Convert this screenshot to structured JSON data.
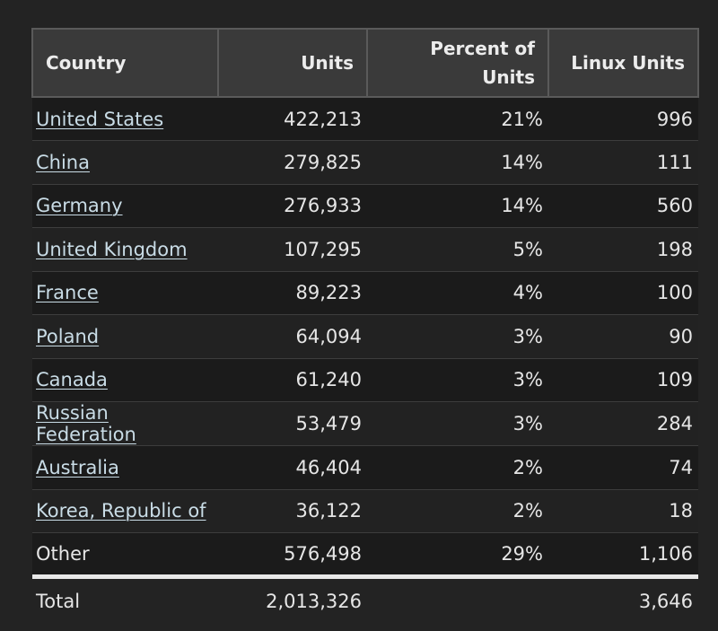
{
  "table": {
    "headers": {
      "country": "Country",
      "units": "Units",
      "percent_line1": "Percent of",
      "percent_line2": "Units",
      "linux": "Linux Units"
    },
    "rows": [
      {
        "country": "United States",
        "units": "422,213",
        "percent": "21%",
        "linux": "996",
        "link": true
      },
      {
        "country": "China",
        "units": "279,825",
        "percent": "14%",
        "linux": "111",
        "link": true
      },
      {
        "country": "Germany",
        "units": "276,933",
        "percent": "14%",
        "linux": "560",
        "link": true
      },
      {
        "country": "United Kingdom",
        "units": "107,295",
        "percent": "5%",
        "linux": "198",
        "link": true
      },
      {
        "country": "France",
        "units": "89,223",
        "percent": "4%",
        "linux": "100",
        "link": true
      },
      {
        "country": "Poland",
        "units": "64,094",
        "percent": "3%",
        "linux": "90",
        "link": true
      },
      {
        "country": "Canada",
        "units": "61,240",
        "percent": "3%",
        "linux": "109",
        "link": true
      },
      {
        "country": "Russian Federation",
        "units": "53,479",
        "percent": "3%",
        "linux": "284",
        "link": true
      },
      {
        "country": "Australia",
        "units": "46,404",
        "percent": "2%",
        "linux": "74",
        "link": true
      },
      {
        "country": "Korea, Republic of",
        "units": "36,122",
        "percent": "2%",
        "linux": "18",
        "link": true
      },
      {
        "country": "Other",
        "units": "576,498",
        "percent": "29%",
        "linux": "1,106",
        "link": false
      }
    ],
    "total": {
      "label": "Total",
      "units": "2,013,326",
      "percent": "",
      "linux": "3,646"
    }
  }
}
